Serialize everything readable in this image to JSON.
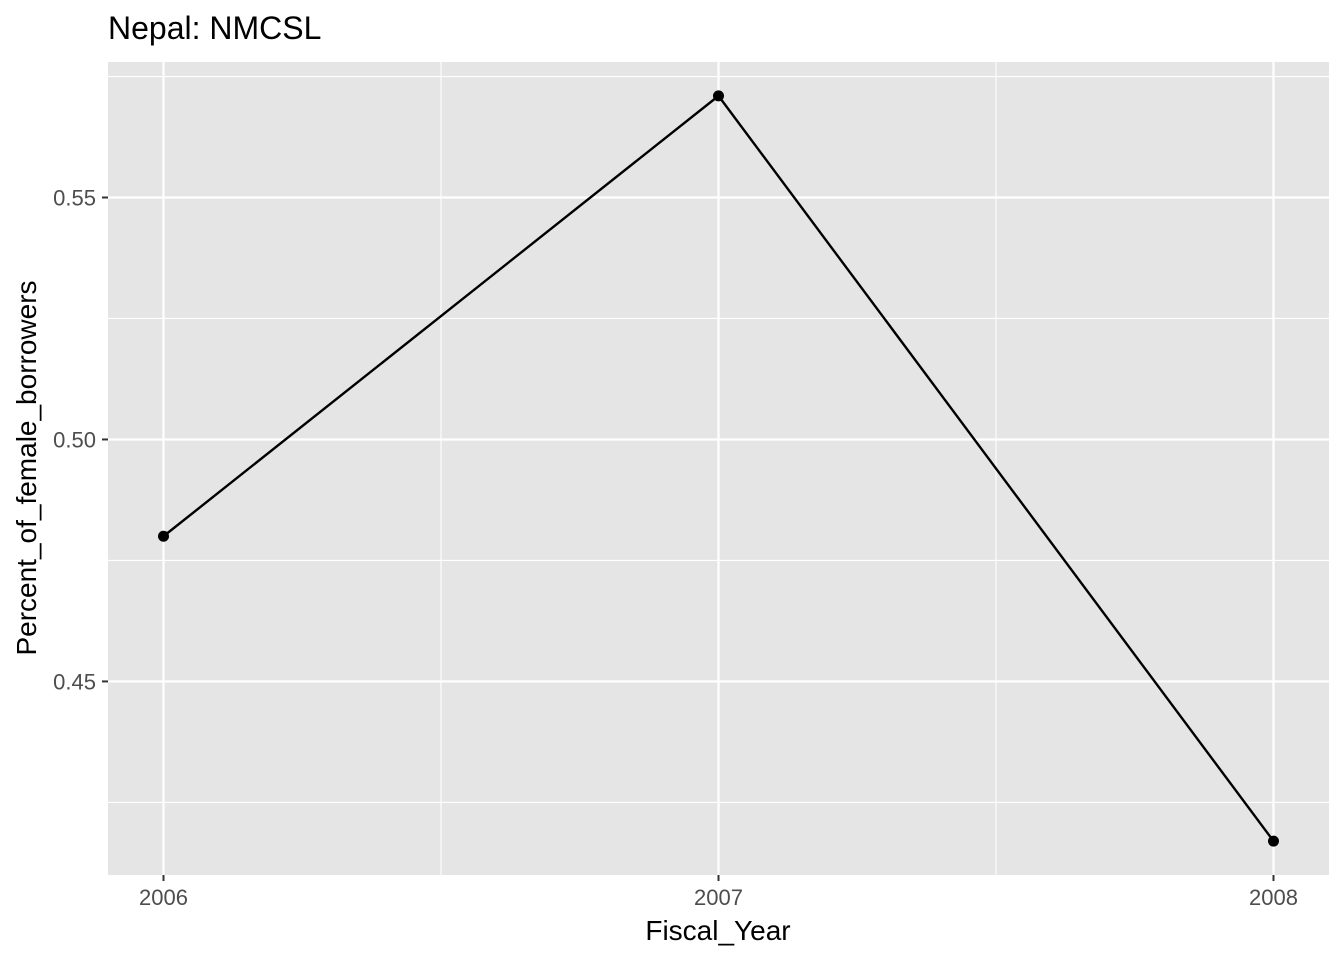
{
  "chart_data": {
    "type": "line",
    "title": "Nepal:  NMCSL",
    "xlabel": "Fiscal_Year",
    "ylabel": "Percent_of_female_borrowers",
    "x": [
      2006,
      2007,
      2008
    ],
    "y": [
      0.48,
      0.571,
      0.417
    ],
    "x_ticks": [
      "2006",
      "2007",
      "2008"
    ],
    "y_ticks": [
      "0.45",
      "0.50",
      "0.55"
    ],
    "xlim": [
      2005.9,
      2008.1
    ],
    "ylim": [
      0.41,
      0.578
    ],
    "grid": true,
    "legend": "none",
    "colors": {
      "panel_background": "#e5e5e5",
      "grid": "#ffffff",
      "line": "#000000",
      "point": "#000000"
    }
  }
}
